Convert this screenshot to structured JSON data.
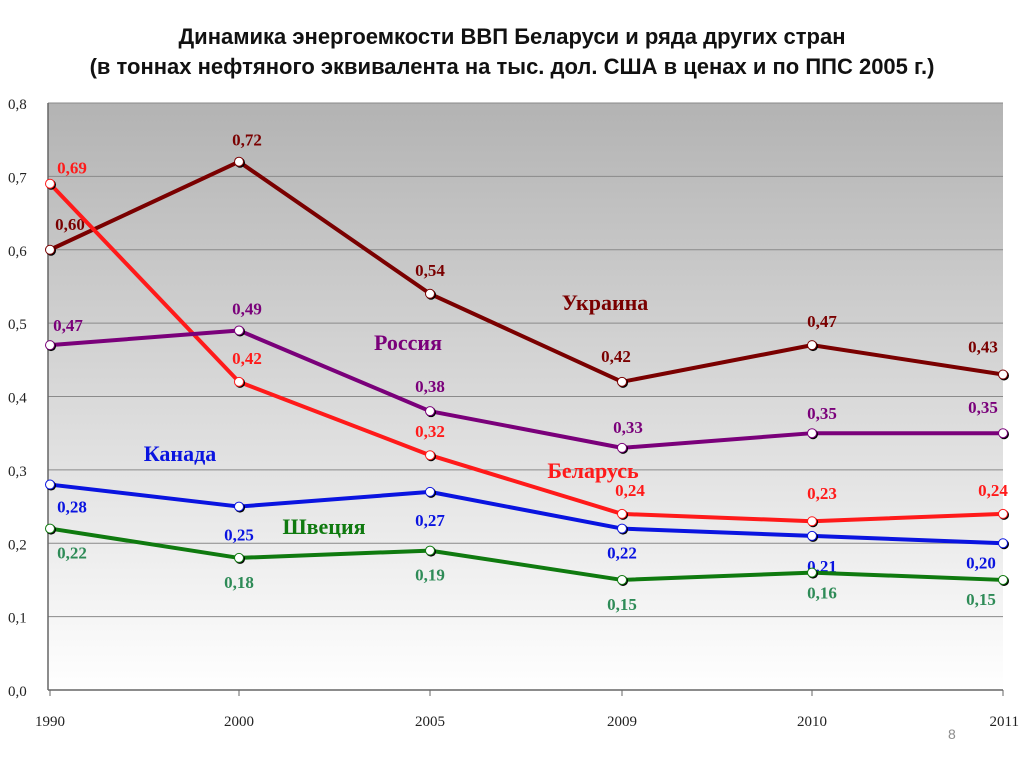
{
  "title_line1": "Динамика энергоемкости ВВП Беларуси и ряда других стран",
  "title_line2": "(в тоннах нефтяного эквивалента на тыс. дол. США в ценах и по ППС 2005 г.)",
  "slide_number": "8",
  "chart_data": {
    "type": "line",
    "title": "Динамика энергоемкости ВВП Беларуси и ряда других стран",
    "subtitle": "(в тоннах нефтяного эквивалента на тыс. дол. США в ценах и по ППС 2005 г.)",
    "categories": [
      "1990",
      "2000",
      "2005",
      "2009",
      "2010",
      "2011"
    ],
    "ylim": [
      0,
      0.8
    ],
    "yticks": [
      "0,0",
      "0,1",
      "0,2",
      "0,3",
      "0,4",
      "0,5",
      "0,6",
      "0,7",
      "0,8"
    ],
    "grid": true,
    "legend": "inline labels",
    "series": [
      {
        "name": "Украина",
        "color": "#7a0000",
        "values": [
          0.6,
          0.72,
          0.54,
          0.42,
          0.47,
          0.43
        ],
        "labels": [
          "0,60",
          "0,72",
          "0,54",
          "0,42",
          "0,47",
          "0,43"
        ]
      },
      {
        "name": "Беларусь",
        "color": "#ff1a1a",
        "values": [
          0.69,
          0.42,
          0.32,
          0.24,
          0.23,
          0.24
        ],
        "labels": [
          "0,69",
          "0,42",
          "0,32",
          "0,24",
          "0,23",
          "0,24"
        ]
      },
      {
        "name": "Россия",
        "color": "#7a007a",
        "values": [
          0.47,
          0.49,
          0.38,
          0.33,
          0.35,
          0.35
        ],
        "labels": [
          "0,47",
          "0,49",
          "0,38",
          "0,33",
          "0,35",
          "0,35"
        ]
      },
      {
        "name": "Канада",
        "color": "#0a14e0",
        "values": [
          0.28,
          0.25,
          0.27,
          0.22,
          0.21,
          0.2
        ],
        "labels": [
          "0,28",
          "0,25",
          "0,27",
          "0,22",
          "0,21",
          "0,20"
        ]
      },
      {
        "name": "Швеция",
        "color": "#0f7a0f",
        "values": [
          0.22,
          0.18,
          0.19,
          0.15,
          0.16,
          0.15
        ],
        "labels": [
          "0,22",
          "0,18",
          "0,19",
          "0,15",
          "0,16",
          "0,15"
        ]
      }
    ]
  }
}
